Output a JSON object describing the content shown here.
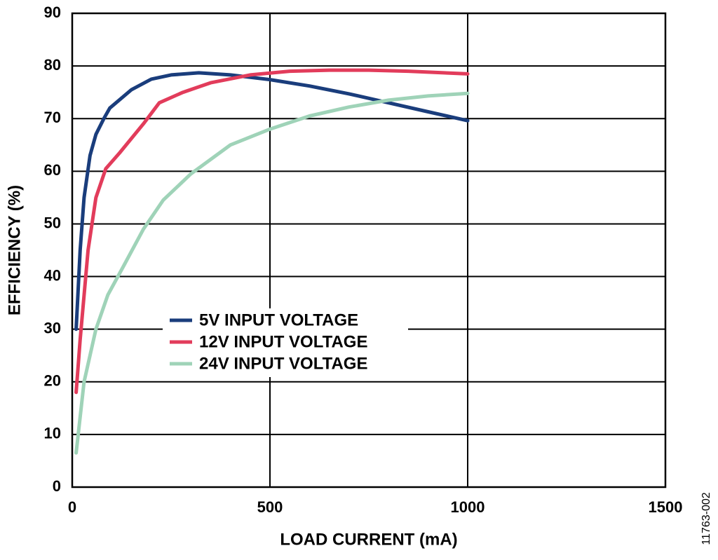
{
  "chart_data": {
    "type": "line",
    "x_label": "LOAD CURRENT (mA)",
    "y_label": "EFFICIENCY (%)",
    "figure_id": "11763-002",
    "xlim": [
      0,
      1500
    ],
    "xticks": [
      0,
      500,
      1000,
      1500
    ],
    "ylim": [
      0,
      90
    ],
    "yticks": [
      0,
      10,
      20,
      30,
      40,
      50,
      60,
      70,
      80,
      90
    ],
    "grid": true,
    "legend": "center",
    "series": [
      {
        "name": "5V INPUT VOLTAGE",
        "color": "#1a3d7c",
        "x": [
          10,
          20,
          30,
          45,
          60,
          80,
          95,
          150,
          200,
          250,
          320,
          400,
          500,
          600,
          700,
          800,
          900,
          1000
        ],
        "values": [
          30,
          45,
          55,
          63,
          67,
          70,
          72,
          75.5,
          77.5,
          78.3,
          78.7,
          78.3,
          77.4,
          76.2,
          74.7,
          73.0,
          71.3,
          69.6
        ]
      },
      {
        "name": "12V INPUT VOLTAGE",
        "color": "#e23c5b",
        "x": [
          10,
          20,
          40,
          60,
          85,
          120,
          180,
          220,
          280,
          350,
          450,
          550,
          650,
          750,
          850,
          1000
        ],
        "values": [
          18,
          28,
          45,
          55,
          60.5,
          63.5,
          69,
          73,
          75,
          76.8,
          78.3,
          79,
          79.2,
          79.2,
          79,
          78.5
        ]
      },
      {
        "name": "24V INPUT VOLTAGE",
        "color": "#9fd3b8",
        "x": [
          10,
          30,
          60,
          90,
          130,
          180,
          230,
          300,
          400,
          500,
          600,
          700,
          800,
          900,
          1000
        ],
        "values": [
          6.5,
          20,
          30,
          36.5,
          42,
          49,
          54.5,
          59.5,
          65,
          68,
          70.5,
          72.2,
          73.5,
          74.3,
          74.8
        ]
      }
    ]
  }
}
